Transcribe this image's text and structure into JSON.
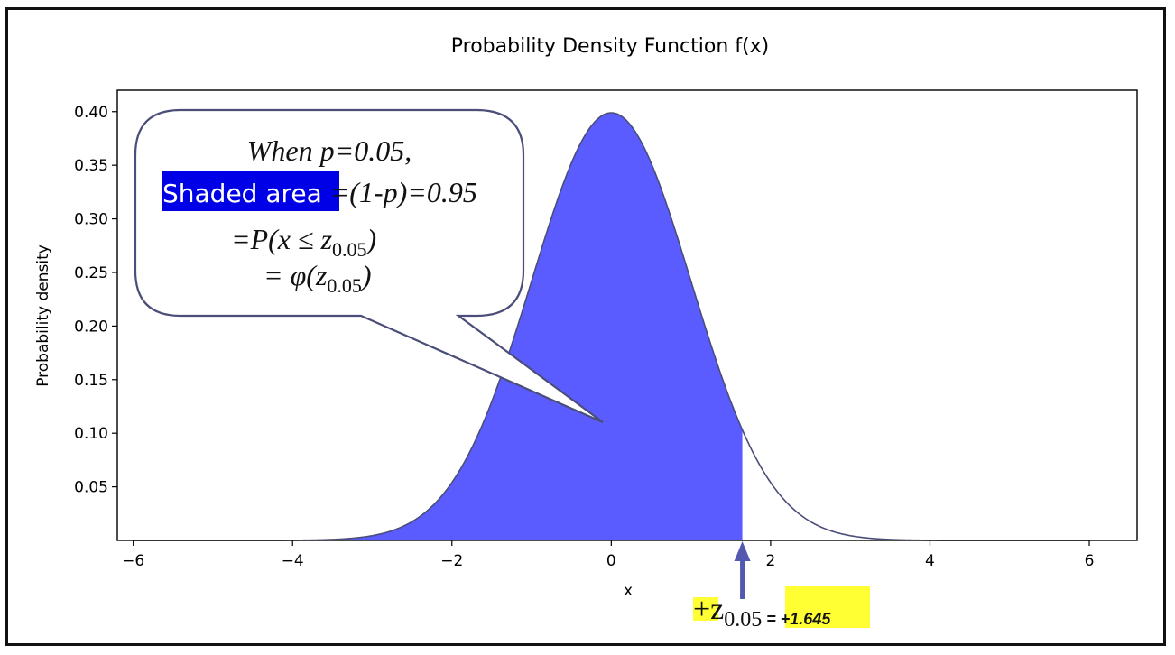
{
  "chart_data": {
    "type": "area",
    "title": "Probability Density Function f(x)",
    "xlabel": "x",
    "ylabel": "Probability density",
    "xlim": [
      -6.2,
      6.6
    ],
    "ylim": [
      0,
      0.42
    ],
    "x_ticks": [
      -6,
      -4,
      -2,
      0,
      2,
      4,
      6
    ],
    "x_tick_labels": [
      "−6",
      "−4",
      "−2",
      "0",
      "2",
      "4",
      "6"
    ],
    "y_ticks": [
      0.05,
      0.1,
      0.15,
      0.2,
      0.25,
      0.3,
      0.35,
      0.4
    ],
    "y_tick_labels": [
      "0.05",
      "0.10",
      "0.15",
      "0.20",
      "0.25",
      "0.30",
      "0.35",
      "0.40"
    ],
    "series": [
      {
        "name": "",
        "distribution": "standard normal",
        "mean": 0,
        "sd": 1,
        "x_range": [
          -6,
          6
        ]
      }
    ],
    "shaded_region": {
      "from": -6,
      "to": 1.645,
      "area": 0.95
    },
    "colors": {
      "fill": "#5a5cff",
      "curve": "#4a4e78",
      "highlight_blue": "#0000e6",
      "highlight_yellow": "#ffff33"
    },
    "callout": {
      "line1": "When p=0.05,",
      "line2_highlight": "Shaded area ",
      "line2_rest": "=(1-p)=0.95",
      "line3_prefix": "=",
      "line3_math": "P(x ≤ z",
      "line3_sub": "0.05",
      "line3_close": ")",
      "line4_prefix": "= ",
      "line4_math": "φ(z",
      "line4_sub": "0.05",
      "line4_close": ")"
    },
    "annotation": {
      "plus_z": "+z",
      "sub": "0.05",
      "value": " = +1.645"
    }
  }
}
